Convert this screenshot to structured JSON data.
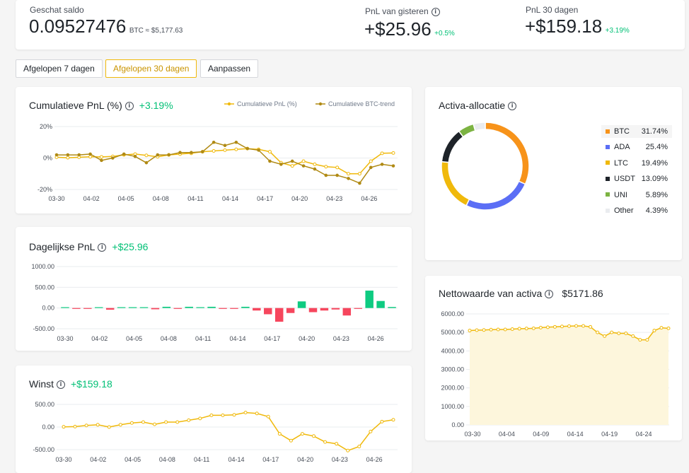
{
  "summary": {
    "balance_label": "Geschat saldo",
    "balance_value": "0.09527476",
    "balance_unit": "BTC ≈ $5,177.63",
    "yesterday_label": "PnL van gisteren",
    "yesterday_value": "+$25.96",
    "yesterday_pct": "+0.5%",
    "d30_label": "PnL 30 dagen",
    "d30_value": "+$159.18",
    "d30_pct": "+3.19%"
  },
  "tabs": [
    "Afgelopen 7 dagen",
    "Afgelopen 30 dagen",
    "Aanpassen"
  ],
  "active_tab": 1,
  "colors": {
    "yellow": "#f0b90b",
    "brown": "#b08a14",
    "green": "#0ecb81",
    "red": "#f6465d",
    "gray": "#eaecef"
  },
  "chart_data": [
    {
      "type": "line",
      "title": "Cumulatieve PnL (%)",
      "title_value": "+3.19%",
      "legend_position": "top-right",
      "x_ticks": [
        "03-30",
        "04-02",
        "04-05",
        "04-08",
        "04-11",
        "04-14",
        "04-17",
        "04-20",
        "04-23",
        "04-26"
      ],
      "y_ticks": [
        "20%",
        "0%",
        "-20%"
      ],
      "ylim": [
        -20,
        20
      ],
      "grid": true,
      "series": [
        {
          "name": "Cumulatieve PnL (%)",
          "color": "#f0b90b",
          "values": [
            0.5,
            0.2,
            0.5,
            0.8,
            0.7,
            1,
            2,
            2.5,
            1.7,
            0.8,
            2,
            2.5,
            3,
            4,
            4.5,
            5,
            5.5,
            6,
            5.5,
            4,
            -3,
            -5,
            -2,
            -4,
            -5.5,
            -6,
            -10,
            -10,
            -2,
            3,
            3.2
          ]
        },
        {
          "name": "Cumulatieve BTC-trend",
          "color": "#b08a14",
          "values": [
            2,
            2,
            2,
            2.5,
            -1.5,
            0,
            2.5,
            1,
            -3,
            2,
            2,
            3.5,
            3.5,
            4,
            10,
            8,
            10,
            6,
            5,
            -2,
            -4,
            -2,
            -5,
            -7,
            -11,
            -11,
            -13,
            -16,
            -6,
            -4,
            -5
          ]
        }
      ]
    },
    {
      "type": "bar",
      "title": "Dagelijkse PnL",
      "title_value": "+$25.96",
      "x_ticks": [
        "03-30",
        "04-02",
        "04-05",
        "04-08",
        "04-11",
        "04-14",
        "04-17",
        "04-20",
        "04-23",
        "04-26"
      ],
      "y_ticks": [
        "1000.00",
        "500.00",
        "0.00",
        "-500.00"
      ],
      "ylim": [
        -500,
        1000
      ],
      "grid": true,
      "values": [
        10,
        -5,
        -5,
        5,
        -40,
        15,
        20,
        15,
        -30,
        30,
        -10,
        30,
        20,
        30,
        -10,
        -10,
        30,
        -60,
        -150,
        -330,
        -120,
        160,
        -100,
        -60,
        -35,
        -180,
        -15,
        420,
        170,
        25
      ]
    },
    {
      "type": "line",
      "title": "Winst",
      "title_value": "+$159.18",
      "x_ticks": [
        "03-30",
        "04-02",
        "04-05",
        "04-08",
        "04-11",
        "04-14",
        "04-17",
        "04-20",
        "04-23",
        "04-26"
      ],
      "y_ticks": [
        "500.00",
        "0.00",
        "-500.00"
      ],
      "ylim": [
        -500,
        500
      ],
      "grid": true,
      "series": [
        {
          "name": "Winst",
          "color": "#f0b90b",
          "values": [
            5,
            10,
            35,
            50,
            0,
            50,
            90,
            110,
            60,
            110,
            110,
            150,
            190,
            260,
            260,
            270,
            320,
            300,
            230,
            -150,
            -300,
            -150,
            -200,
            -330,
            -370,
            -520,
            -430,
            -100,
            120,
            160
          ]
        }
      ]
    },
    {
      "type": "pie",
      "title": "Activa-allocatie",
      "legend_position": "right",
      "slices": [
        {
          "label": "BTC",
          "value": 31.74,
          "display": "31.74%",
          "color": "#f7931a"
        },
        {
          "label": "ADA",
          "value": 25.4,
          "display": "25.4%",
          "color": "#5b6ef5"
        },
        {
          "label": "LTC",
          "value": 19.49,
          "display": "19.49%",
          "color": "#f0b90b"
        },
        {
          "label": "USDT",
          "value": 13.09,
          "display": "13.09%",
          "color": "#1e2329"
        },
        {
          "label": "UNI",
          "value": 5.89,
          "display": "5.89%",
          "color": "#7cb342"
        },
        {
          "label": "Other",
          "value": 4.39,
          "display": "4.39%",
          "color": "#eaecef"
        }
      ]
    },
    {
      "type": "area",
      "title": "Nettowaarde van activa",
      "title_value": "$5171.86",
      "x_ticks": [
        "03-30",
        "04-04",
        "04-09",
        "04-14",
        "04-19",
        "04-24"
      ],
      "y_ticks": [
        "6000.00",
        "5000.00",
        "4000.00",
        "3000.00",
        "2000.00",
        "1000.00",
        "0.00"
      ],
      "ylim": [
        0,
        6000
      ],
      "grid": true,
      "series": [
        {
          "name": "Nettowaarde van activa",
          "color": "#f0b90b",
          "values": [
            5100,
            5120,
            5130,
            5150,
            5160,
            5160,
            5180,
            5200,
            5210,
            5220,
            5260,
            5280,
            5300,
            5320,
            5340,
            5350,
            5350,
            5300,
            5000,
            4800,
            5000,
            4950,
            4950,
            4800,
            4600,
            4600,
            5100,
            5250,
            5220
          ]
        }
      ]
    }
  ]
}
